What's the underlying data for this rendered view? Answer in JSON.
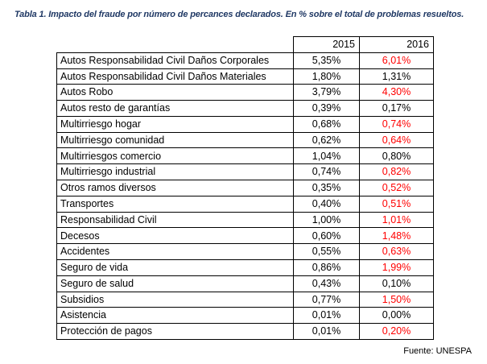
{
  "caption": "Tabla 1. Impacto del fraude por número de percances declarados. En % sobre el total de problemas resueltos.",
  "table": {
    "columns": [
      "2015",
      "2016"
    ],
    "rows": [
      {
        "label": "Autos Responsabilidad Civil Daños Corporales",
        "v2015": "5,35%",
        "v2016": "6,01%",
        "increase": true
      },
      {
        "label": "Autos Responsabilidad Civil Daños Materiales",
        "v2015": "1,80%",
        "v2016": "1,31%",
        "increase": false
      },
      {
        "label": "Autos Robo",
        "v2015": "3,79%",
        "v2016": "4,30%",
        "increase": true
      },
      {
        "label": "Autos resto de garantías",
        "v2015": "0,39%",
        "v2016": "0,17%",
        "increase": false
      },
      {
        "label": "Multirriesgo hogar",
        "v2015": "0,68%",
        "v2016": "0,74%",
        "increase": true
      },
      {
        "label": "Multirriesgo comunidad",
        "v2015": "0,62%",
        "v2016": "0,64%",
        "increase": true
      },
      {
        "label": "Multirriesgos comercio",
        "v2015": "1,04%",
        "v2016": "0,80%",
        "increase": false
      },
      {
        "label": "Multirriesgo industrial",
        "v2015": "0,74%",
        "v2016": "0,82%",
        "increase": true
      },
      {
        "label": "Otros ramos diversos",
        "v2015": "0,35%",
        "v2016": "0,52%",
        "increase": true
      },
      {
        "label": "Transportes",
        "v2015": "0,40%",
        "v2016": "0,51%",
        "increase": true
      },
      {
        "label": "Responsabilidad Civil",
        "v2015": "1,00%",
        "v2016": "1,01%",
        "increase": true
      },
      {
        "label": "Decesos",
        "v2015": "0,60%",
        "v2016": "1,48%",
        "increase": true
      },
      {
        "label": "Accidentes",
        "v2015": "0,55%",
        "v2016": "0,63%",
        "increase": true
      },
      {
        "label": "Seguro de vida",
        "v2015": "0,86%",
        "v2016": "1,99%",
        "increase": true
      },
      {
        "label": "Seguro de salud",
        "v2015": "0,43%",
        "v2016": "0,10%",
        "increase": false
      },
      {
        "label": "Subsidios",
        "v2015": "0,77%",
        "v2016": "1,50%",
        "increase": true
      },
      {
        "label": "Asistencia",
        "v2015": "0,01%",
        "v2016": "0,00%",
        "increase": false
      },
      {
        "label": "Protección de pagos",
        "v2015": "0,01%",
        "v2016": "0,20%",
        "increase": true
      }
    ]
  },
  "source": "Fuente: UNESPA",
  "colors": {
    "caption_blue": "#1f3864",
    "body_text": "#000000",
    "increase_red": "#ff0000",
    "border": "#000000",
    "background": "#ffffff"
  }
}
